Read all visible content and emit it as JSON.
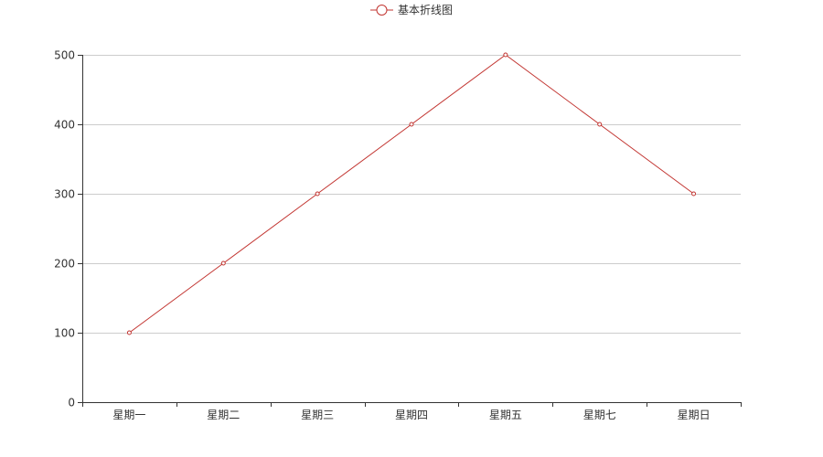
{
  "chart_data": {
    "type": "line",
    "categories": [
      "星期一",
      "星期二",
      "星期三",
      "星期四",
      "星期五",
      "星期七",
      "星期日"
    ],
    "series": [
      {
        "name": "基本折线图",
        "values": [
          100,
          200,
          300,
          400,
          500,
          400,
          300
        ]
      }
    ],
    "y_ticks": [
      "0",
      "100",
      "200",
      "300",
      "400",
      "500"
    ],
    "ylim": [
      0,
      500
    ],
    "grid": true,
    "legend_position": "top-center",
    "colors": {
      "series": "#c23531",
      "grid": "#cccccc",
      "axis": "#333333",
      "text": "#333333"
    }
  }
}
